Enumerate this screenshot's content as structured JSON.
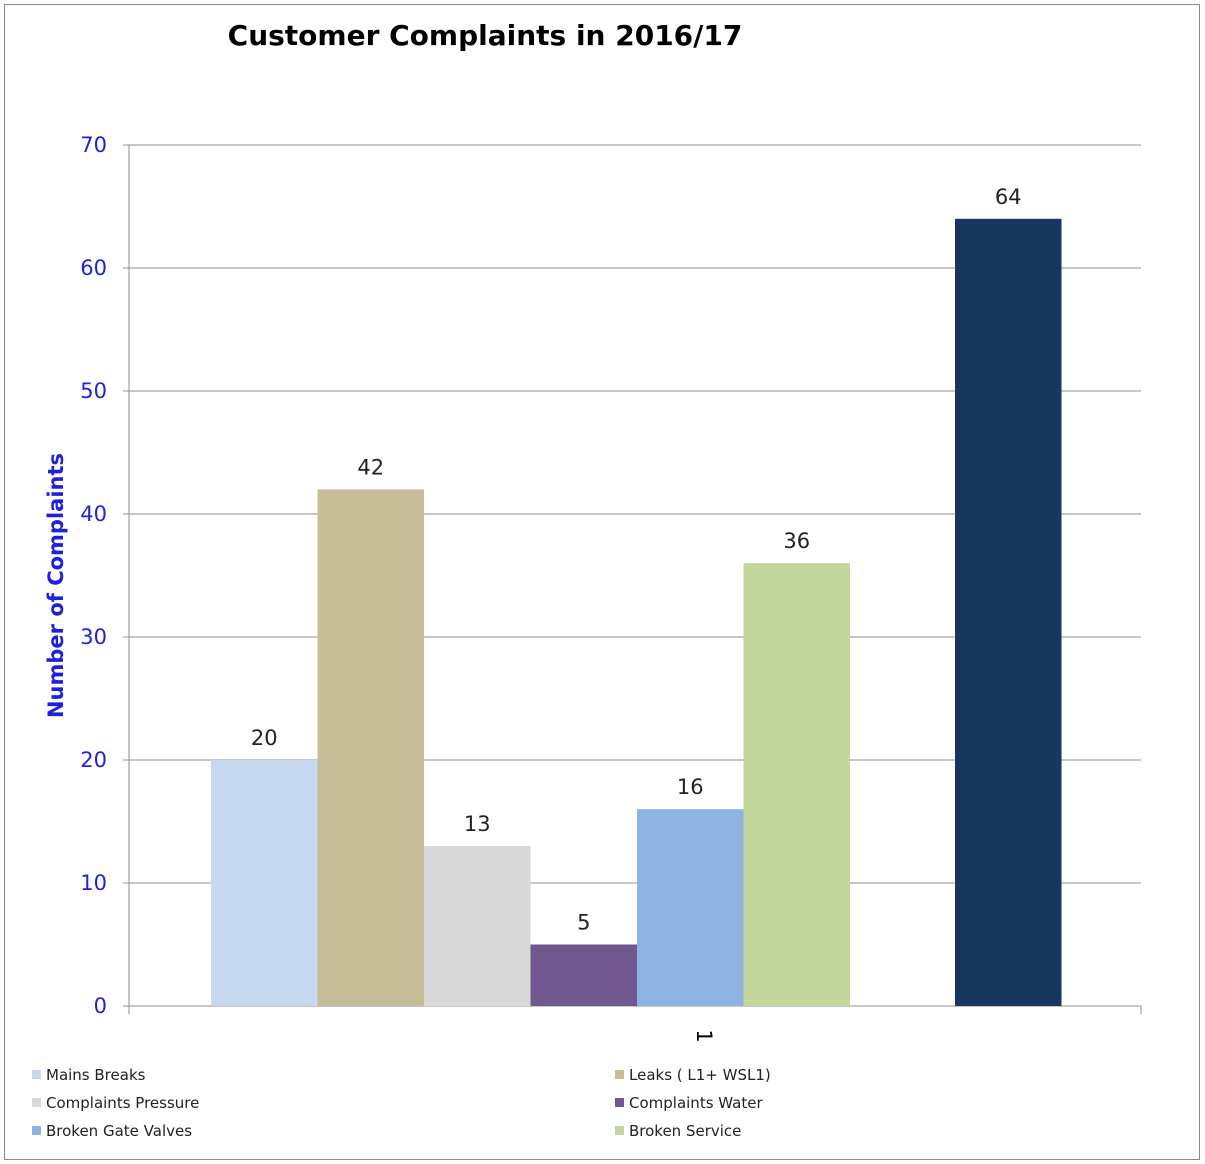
{
  "chart_data": {
    "type": "bar",
    "title": "Customer Complaints in 2016/17",
    "ylabel": "Number of Complaints",
    "xlabel": "",
    "categories": [
      "1"
    ],
    "ylim": [
      0,
      70
    ],
    "yticks": [
      0,
      10,
      20,
      30,
      40,
      50,
      60,
      70
    ],
    "grid": true,
    "legend_position": "bottom",
    "series": [
      {
        "name": "Mains Breaks",
        "values": [
          20
        ],
        "color": "#c6d9f1"
      },
      {
        "name": "Leaks ( L1+ WSL1)",
        "values": [
          42
        ],
        "color": "#c4bd97"
      },
      {
        "name": "Complaints Pressure",
        "values": [
          13
        ],
        "color": "#d9d9d9"
      },
      {
        "name": "Complaints Water",
        "values": [
          5
        ],
        "color": "#70578f"
      },
      {
        "name": "Broken Gate Valves",
        "values": [
          16
        ],
        "color": "#8db3e2"
      },
      {
        "name": "Broken Service",
        "values": [
          36
        ],
        "color": "#c3d69b"
      },
      {
        "name": "",
        "values": [
          64
        ],
        "color": "#17375e"
      }
    ],
    "colors": {
      "axis_text": "#1f1fe0",
      "gridline": "#8c8c8c",
      "value_label": "#222222"
    }
  }
}
